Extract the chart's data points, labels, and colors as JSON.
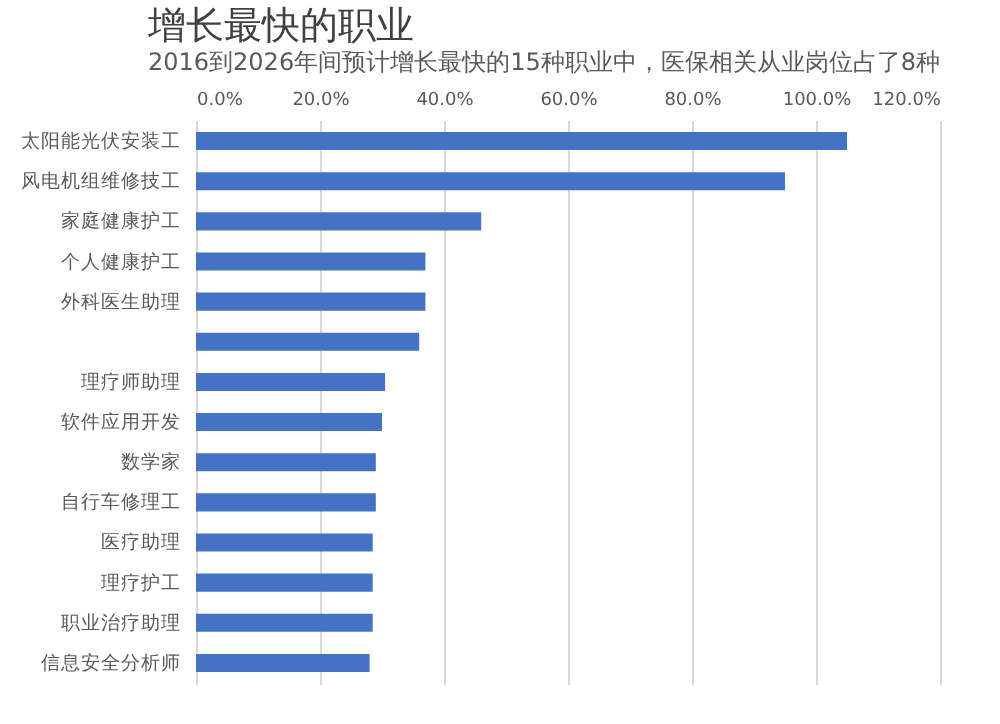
{
  "chart_data": {
    "type": "bar",
    "orientation": "horizontal",
    "title": "增长最快的职业",
    "subtitle": "2016到2026年间预计增长最快的15种职业中，医保相关从业岗位占了8种",
    "categories": [
      "太阳能光伏安装工",
      "风电机组维修技工",
      "家庭健康护工",
      "个人健康护工",
      "外科医生助理",
      null,
      null,
      "理疗师助理",
      "软件应用开发",
      "数学家",
      "自行车修理工",
      "医疗助理",
      "理疗护工",
      "职业治疗助理",
      "信息安全分析师"
    ],
    "values": [
      105,
      95,
      46,
      37,
      37,
      36,
      null,
      30.5,
      30,
      29,
      29,
      28.5,
      28.5,
      28.5,
      28
    ],
    "color": "#4472c4",
    "xlim": [
      0,
      120
    ],
    "xticks": [
      {
        "value": 0,
        "label": "0.0%"
      },
      {
        "value": 20,
        "label": "20.0%"
      },
      {
        "value": 40,
        "label": "40.0%"
      },
      {
        "value": 60,
        "label": "60.0%"
      },
      {
        "value": 80,
        "label": "80.0%"
      },
      {
        "value": 100,
        "label": "100.0%"
      },
      {
        "value": 120,
        "label": "120.0%"
      }
    ],
    "grid": "x"
  }
}
